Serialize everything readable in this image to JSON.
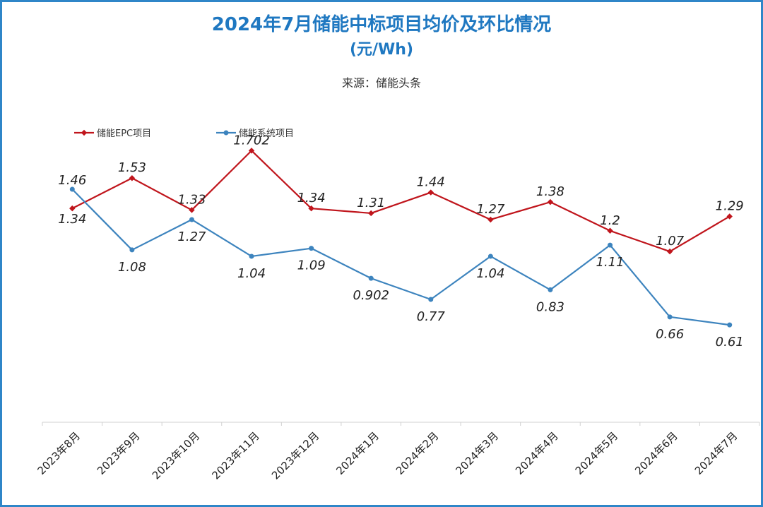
{
  "header": {
    "title": "2024年7月储能中标项目均价及环比情况",
    "unit": "(元/Wh)",
    "source": "来源：储能头条"
  },
  "chart_data": {
    "type": "line",
    "title": "2024年7月储能中标项目均价及环比情况",
    "subtitle": "(元/Wh)",
    "xlabel": "",
    "ylabel": "",
    "ylim": [
      0,
      2.0
    ],
    "grid": false,
    "legend_position": "top-left",
    "categories": [
      "2023年8月",
      "2023年9月",
      "2023年10月",
      "2023年11月",
      "2023年12月",
      "2024年1月",
      "2024年2月",
      "2024年3月",
      "2024年4月",
      "2024年5月",
      "2024年6月",
      "2024年7月"
    ],
    "series": [
      {
        "name": "储能EPC项目",
        "color": "#c0151c",
        "values": [
          1.34,
          1.53,
          1.33,
          1.702,
          1.34,
          1.31,
          1.44,
          1.27,
          1.38,
          1.2,
          1.07,
          1.29
        ],
        "labels": [
          "1.34",
          "1.53",
          "1.33",
          "1.702",
          "1.34",
          "1.31",
          "1.44",
          "1.27",
          "1.38",
          "1.2",
          "1.07",
          "1.29"
        ]
      },
      {
        "name": "储能系统项目",
        "color": "#3d84be",
        "values": [
          1.46,
          1.08,
          1.27,
          1.04,
          1.09,
          0.902,
          0.77,
          1.04,
          0.83,
          1.11,
          0.66,
          0.61
        ],
        "labels": [
          "1.46",
          "1.08",
          "1.27",
          "1.04",
          "1.09",
          "0.902",
          "0.77",
          "1.04",
          "0.83",
          "1.11",
          "0.66",
          "0.61"
        ]
      }
    ]
  }
}
